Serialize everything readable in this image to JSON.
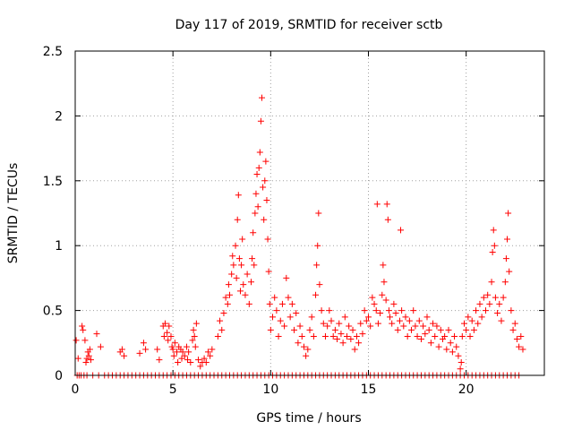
{
  "chart_data": {
    "type": "scatter",
    "title": "Day 117 of 2019, SRMTID for receiver sctb",
    "xlabel": "GPS time / hours",
    "ylabel": "SRMTID / TECUs",
    "xlim": [
      0,
      24
    ],
    "ylim": [
      0,
      2.5
    ],
    "x_ticks": [
      0,
      5,
      10,
      15,
      20
    ],
    "x_tick_labels": [
      "0",
      "5",
      "10",
      "15",
      "20"
    ],
    "y_ticks": [
      0,
      0.5,
      1,
      1.5,
      2,
      2.5
    ],
    "y_tick_labels": [
      "0",
      "0.5",
      "1",
      "1.5",
      "2",
      "2.5"
    ],
    "grid": true,
    "marker": "+",
    "series": [
      {
        "name": "SRMTID",
        "color": "#ff0000",
        "points": [
          [
            0.05,
            0.27
          ],
          [
            0.15,
            0.13
          ],
          [
            0.35,
            0.38
          ],
          [
            0.4,
            0.35
          ],
          [
            0.5,
            0.27
          ],
          [
            0.55,
            0.1
          ],
          [
            0.6,
            0.13
          ],
          [
            0.65,
            0.18
          ],
          [
            0.7,
            0.15
          ],
          [
            0.75,
            0.2
          ],
          [
            0.8,
            0.12
          ],
          [
            1.1,
            0.32
          ],
          [
            1.3,
            0.22
          ],
          [
            2.3,
            0.18
          ],
          [
            2.4,
            0.2
          ],
          [
            2.5,
            0.15
          ],
          [
            3.3,
            0.17
          ],
          [
            3.5,
            0.25
          ],
          [
            3.6,
            0.2
          ],
          [
            4.2,
            0.2
          ],
          [
            4.3,
            0.12
          ],
          [
            4.5,
            0.38
          ],
          [
            4.55,
            0.3
          ],
          [
            4.6,
            0.4
          ],
          [
            4.7,
            0.33
          ],
          [
            4.75,
            0.27
          ],
          [
            4.8,
            0.38
          ],
          [
            4.9,
            0.3
          ],
          [
            4.95,
            0.22
          ],
          [
            5.0,
            0.2
          ],
          [
            5.05,
            0.15
          ],
          [
            5.1,
            0.25
          ],
          [
            5.2,
            0.18
          ],
          [
            5.25,
            0.1
          ],
          [
            5.3,
            0.22
          ],
          [
            5.4,
            0.2
          ],
          [
            5.45,
            0.13
          ],
          [
            5.5,
            0.18
          ],
          [
            5.6,
            0.15
          ],
          [
            5.7,
            0.22
          ],
          [
            5.75,
            0.12
          ],
          [
            5.8,
            0.18
          ],
          [
            5.9,
            0.1
          ],
          [
            6.0,
            0.27
          ],
          [
            6.05,
            0.35
          ],
          [
            6.1,
            0.3
          ],
          [
            6.15,
            0.22
          ],
          [
            6.2,
            0.4
          ],
          [
            6.3,
            0.12
          ],
          [
            6.4,
            0.07
          ],
          [
            6.5,
            0.1
          ],
          [
            6.6,
            0.13
          ],
          [
            6.7,
            0.1
          ],
          [
            6.8,
            0.18
          ],
          [
            6.9,
            0.15
          ],
          [
            7.0,
            0.2
          ],
          [
            7.3,
            0.3
          ],
          [
            7.4,
            0.42
          ],
          [
            7.5,
            0.35
          ],
          [
            7.6,
            0.48
          ],
          [
            7.7,
            0.6
          ],
          [
            7.8,
            0.55
          ],
          [
            7.85,
            0.7
          ],
          [
            7.9,
            0.62
          ],
          [
            8.0,
            0.78
          ],
          [
            8.05,
            0.92
          ],
          [
            8.1,
            0.85
          ],
          [
            8.2,
            1.0
          ],
          [
            8.25,
            0.75
          ],
          [
            8.3,
            1.2
          ],
          [
            8.35,
            1.39
          ],
          [
            8.4,
            0.9
          ],
          [
            8.45,
            0.65
          ],
          [
            8.5,
            0.85
          ],
          [
            8.55,
            1.05
          ],
          [
            8.6,
            0.7
          ],
          [
            8.7,
            0.62
          ],
          [
            8.8,
            0.78
          ],
          [
            8.9,
            0.55
          ],
          [
            9.0,
            0.72
          ],
          [
            9.05,
            0.9
          ],
          [
            9.1,
            1.1
          ],
          [
            9.15,
            0.85
          ],
          [
            9.2,
            1.25
          ],
          [
            9.25,
            1.4
          ],
          [
            9.3,
            1.55
          ],
          [
            9.35,
            1.3
          ],
          [
            9.4,
            1.6
          ],
          [
            9.45,
            1.72
          ],
          [
            9.5,
            1.96
          ],
          [
            9.55,
            2.14
          ],
          [
            9.6,
            1.45
          ],
          [
            9.65,
            1.2
          ],
          [
            9.7,
            1.5
          ],
          [
            9.75,
            1.65
          ],
          [
            9.8,
            1.35
          ],
          [
            9.85,
            1.05
          ],
          [
            9.9,
            0.8
          ],
          [
            9.95,
            0.55
          ],
          [
            10.0,
            0.35
          ],
          [
            10.1,
            0.45
          ],
          [
            10.2,
            0.6
          ],
          [
            10.3,
            0.5
          ],
          [
            10.4,
            0.3
          ],
          [
            10.5,
            0.42
          ],
          [
            10.6,
            0.55
          ],
          [
            10.7,
            0.38
          ],
          [
            10.8,
            0.75
          ],
          [
            10.9,
            0.6
          ],
          [
            11.0,
            0.45
          ],
          [
            11.1,
            0.55
          ],
          [
            11.2,
            0.35
          ],
          [
            11.3,
            0.48
          ],
          [
            11.4,
            0.25
          ],
          [
            11.5,
            0.38
          ],
          [
            11.6,
            0.3
          ],
          [
            11.7,
            0.22
          ],
          [
            11.8,
            0.15
          ],
          [
            11.9,
            0.2
          ],
          [
            12.0,
            0.35
          ],
          [
            12.1,
            0.45
          ],
          [
            12.2,
            0.3
          ],
          [
            12.3,
            0.62
          ],
          [
            12.35,
            0.85
          ],
          [
            12.4,
            1.0
          ],
          [
            12.45,
            1.25
          ],
          [
            12.5,
            0.7
          ],
          [
            12.6,
            0.5
          ],
          [
            12.7,
            0.4
          ],
          [
            12.8,
            0.3
          ],
          [
            12.9,
            0.38
          ],
          [
            13.0,
            0.5
          ],
          [
            13.1,
            0.42
          ],
          [
            13.2,
            0.3
          ],
          [
            13.3,
            0.35
          ],
          [
            13.4,
            0.28
          ],
          [
            13.5,
            0.4
          ],
          [
            13.6,
            0.32
          ],
          [
            13.7,
            0.25
          ],
          [
            13.8,
            0.45
          ],
          [
            13.9,
            0.3
          ],
          [
            14.0,
            0.38
          ],
          [
            14.1,
            0.28
          ],
          [
            14.2,
            0.35
          ],
          [
            14.3,
            0.2
          ],
          [
            14.4,
            0.3
          ],
          [
            14.5,
            0.25
          ],
          [
            14.6,
            0.4
          ],
          [
            14.7,
            0.32
          ],
          [
            14.8,
            0.5
          ],
          [
            14.9,
            0.42
          ],
          [
            15.0,
            0.45
          ],
          [
            15.1,
            0.38
          ],
          [
            15.2,
            0.6
          ],
          [
            15.3,
            0.55
          ],
          [
            15.4,
            0.5
          ],
          [
            15.45,
            1.32
          ],
          [
            15.5,
            0.4
          ],
          [
            15.6,
            0.48
          ],
          [
            15.7,
            0.62
          ],
          [
            15.75,
            0.85
          ],
          [
            15.8,
            0.72
          ],
          [
            15.9,
            0.58
          ],
          [
            15.95,
            1.32
          ],
          [
            16.0,
            1.2
          ],
          [
            16.05,
            0.5
          ],
          [
            16.1,
            0.45
          ],
          [
            16.2,
            0.4
          ],
          [
            16.3,
            0.55
          ],
          [
            16.4,
            0.48
          ],
          [
            16.5,
            0.35
          ],
          [
            16.6,
            0.42
          ],
          [
            16.65,
            1.12
          ],
          [
            16.7,
            0.5
          ],
          [
            16.8,
            0.38
          ],
          [
            16.9,
            0.45
          ],
          [
            17.0,
            0.3
          ],
          [
            17.1,
            0.42
          ],
          [
            17.2,
            0.35
          ],
          [
            17.3,
            0.5
          ],
          [
            17.4,
            0.38
          ],
          [
            17.5,
            0.3
          ],
          [
            17.6,
            0.42
          ],
          [
            17.7,
            0.28
          ],
          [
            17.8,
            0.38
          ],
          [
            17.9,
            0.32
          ],
          [
            18.0,
            0.45
          ],
          [
            18.1,
            0.35
          ],
          [
            18.2,
            0.25
          ],
          [
            18.3,
            0.4
          ],
          [
            18.4,
            0.3
          ],
          [
            18.5,
            0.38
          ],
          [
            18.6,
            0.22
          ],
          [
            18.7,
            0.35
          ],
          [
            18.8,
            0.28
          ],
          [
            18.9,
            0.3
          ],
          [
            19.0,
            0.2
          ],
          [
            19.1,
            0.35
          ],
          [
            19.2,
            0.25
          ],
          [
            19.3,
            0.18
          ],
          [
            19.4,
            0.3
          ],
          [
            19.5,
            0.22
          ],
          [
            19.6,
            0.15
          ],
          [
            19.7,
            0.05
          ],
          [
            19.75,
            0.1
          ],
          [
            19.8,
            0.3
          ],
          [
            19.9,
            0.4
          ],
          [
            20.0,
            0.35
          ],
          [
            20.1,
            0.45
          ],
          [
            20.2,
            0.3
          ],
          [
            20.3,
            0.42
          ],
          [
            20.4,
            0.35
          ],
          [
            20.5,
            0.5
          ],
          [
            20.6,
            0.4
          ],
          [
            20.7,
            0.55
          ],
          [
            20.8,
            0.45
          ],
          [
            20.9,
            0.6
          ],
          [
            21.0,
            0.5
          ],
          [
            21.1,
            0.62
          ],
          [
            21.2,
            0.55
          ],
          [
            21.3,
            0.72
          ],
          [
            21.35,
            0.95
          ],
          [
            21.4,
            1.12
          ],
          [
            21.45,
            1.0
          ],
          [
            21.5,
            0.6
          ],
          [
            21.6,
            0.48
          ],
          [
            21.7,
            0.55
          ],
          [
            21.8,
            0.42
          ],
          [
            21.9,
            0.6
          ],
          [
            22.0,
            0.72
          ],
          [
            22.05,
            0.9
          ],
          [
            22.1,
            1.05
          ],
          [
            22.15,
            1.25
          ],
          [
            22.2,
            0.8
          ],
          [
            22.3,
            0.5
          ],
          [
            22.4,
            0.35
          ],
          [
            22.5,
            0.4
          ],
          [
            22.6,
            0.28
          ],
          [
            22.7,
            0.22
          ],
          [
            22.8,
            0.3
          ],
          [
            22.9,
            0.2
          ]
        ],
        "zero_points_x": [
          0.1,
          0.2,
          0.3,
          0.45,
          0.6,
          0.9,
          1.2,
          1.5,
          1.7,
          1.9,
          2.1,
          2.3,
          2.5,
          2.7,
          2.9,
          3.1,
          3.3,
          3.5,
          3.7,
          3.9,
          4.1,
          4.3,
          4.5,
          4.7,
          4.9,
          5.1,
          5.3,
          5.5,
          5.7,
          5.9,
          6.1,
          6.3,
          6.5,
          6.7,
          6.9,
          7.1,
          7.3,
          7.5,
          7.7,
          7.9,
          8.1,
          8.3,
          8.5,
          8.7,
          8.9,
          9.1,
          9.3,
          9.5,
          9.7,
          9.9,
          10.1,
          10.3,
          10.5,
          10.7,
          10.9,
          11.1,
          11.3,
          11.5,
          11.7,
          11.9,
          12.1,
          12.3,
          12.5,
          12.7,
          12.9,
          13.1,
          13.3,
          13.5,
          13.7,
          13.9,
          14.1,
          14.3,
          14.5,
          14.7,
          14.9,
          15.1,
          15.3,
          15.5,
          15.7,
          15.9,
          16.1,
          16.3,
          16.5,
          16.7,
          16.9,
          17.1,
          17.3,
          17.5,
          17.7,
          17.9,
          18.1,
          18.3,
          18.5,
          18.7,
          18.9,
          19.1,
          19.3,
          19.5,
          19.7,
          19.9,
          20.1,
          20.3,
          20.5,
          20.7,
          20.9,
          21.1,
          21.3,
          21.5,
          21.7,
          21.9,
          22.1,
          22.3,
          22.5,
          22.7
        ]
      }
    ]
  }
}
